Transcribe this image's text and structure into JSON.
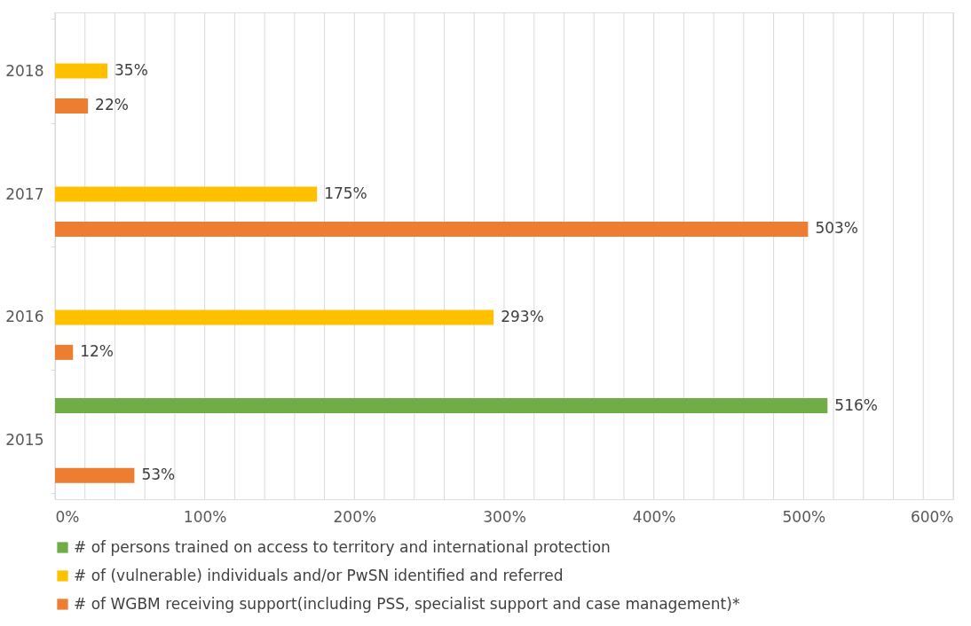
{
  "chart_data": {
    "type": "bar",
    "orientation": "horizontal",
    "categories": [
      "2018",
      "2017",
      "2016",
      "2015"
    ],
    "series": [
      {
        "name": "# of persons trained on access to territory and international protection",
        "color": "#70ad47",
        "values": [
          null,
          null,
          null,
          516
        ],
        "value_labels": [
          null,
          null,
          null,
          "516%"
        ]
      },
      {
        "name": "# of (vulnerable) individuals and/or PwSN identified and referred",
        "color": "#ffc000",
        "values": [
          35,
          175,
          293,
          null
        ],
        "value_labels": [
          "35%",
          "175%",
          "293%",
          null
        ]
      },
      {
        "name": "# of WGBM receiving support(including PSS, specialist support and case management)*",
        "color": "#ed7d31",
        "values": [
          22,
          503,
          12,
          53
        ],
        "value_labels": [
          "22%",
          "503%",
          "12%",
          "53%"
        ]
      }
    ],
    "xlim": [
      0,
      600
    ],
    "xticks": [
      {
        "value": 0,
        "label": "0%"
      },
      {
        "value": 20,
        "label": null
      },
      {
        "value": 40,
        "label": null
      },
      {
        "value": 60,
        "label": null
      },
      {
        "value": 80,
        "label": null
      },
      {
        "value": 100,
        "label": "100%"
      },
      {
        "value": 120,
        "label": null
      },
      {
        "value": 140,
        "label": null
      },
      {
        "value": 160,
        "label": null
      },
      {
        "value": 180,
        "label": null
      },
      {
        "value": 200,
        "label": "200%"
      },
      {
        "value": 220,
        "label": null
      },
      {
        "value": 240,
        "label": null
      },
      {
        "value": 260,
        "label": null
      },
      {
        "value": 280,
        "label": null
      },
      {
        "value": 300,
        "label": "300%"
      },
      {
        "value": 320,
        "label": null
      },
      {
        "value": 340,
        "label": null
      },
      {
        "value": 360,
        "label": null
      },
      {
        "value": 380,
        "label": null
      },
      {
        "value": 400,
        "label": "400%"
      },
      {
        "value": 420,
        "label": null
      },
      {
        "value": 440,
        "label": null
      },
      {
        "value": 460,
        "label": null
      },
      {
        "value": 480,
        "label": null
      },
      {
        "value": 500,
        "label": "500%"
      },
      {
        "value": 520,
        "label": null
      },
      {
        "value": 540,
        "label": null
      },
      {
        "value": 560,
        "label": null
      },
      {
        "value": 580,
        "label": null
      },
      {
        "value": 600,
        "label": "600%"
      }
    ],
    "grid": "x",
    "legend": "bottom"
  }
}
